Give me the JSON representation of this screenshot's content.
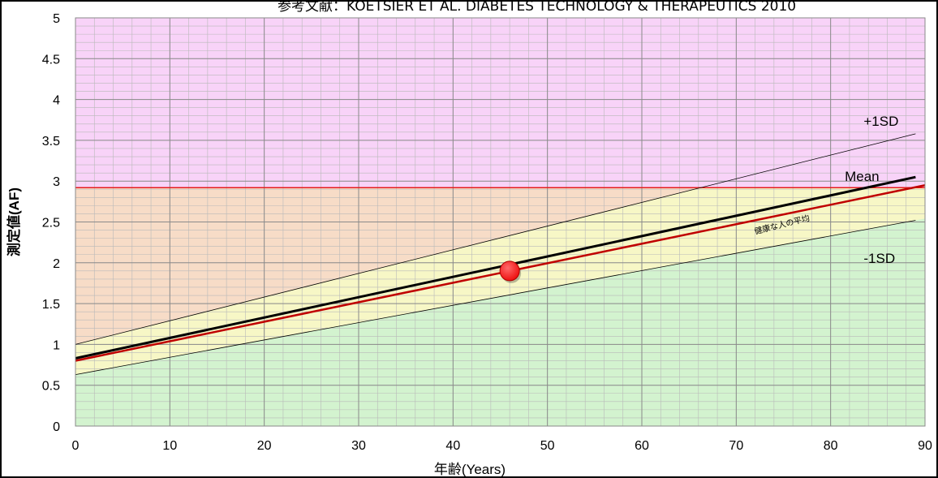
{
  "source_note": "参考文献：KOETSIER ET AL. DIABETES TECHNOLOGY & THERAPEUTICS 2010",
  "chart_data": {
    "type": "line",
    "title": "",
    "xlabel": "年齢(Years)",
    "ylabel": "測定値(AF)",
    "xlim": [
      0,
      90
    ],
    "ylim": [
      0,
      5
    ],
    "x_ticks": [
      0,
      10,
      20,
      30,
      40,
      50,
      60,
      70,
      80,
      90
    ],
    "y_ticks": [
      0,
      0.5,
      1,
      1.5,
      2,
      2.5,
      3,
      3.5,
      4,
      4.5,
      5
    ],
    "y_tick_labels": [
      "0",
      "0.5",
      "1",
      "1.5",
      "2",
      "2.5",
      "3",
      "3.5",
      "4",
      "4.5",
      "5"
    ],
    "grid": true,
    "minor_grid": {
      "x_step": 2,
      "y_step": 0.1
    },
    "background_zones": [
      {
        "from": 2.9,
        "to": 5,
        "color": "#f8d3f8"
      },
      {
        "from": 0,
        "to": 2.9,
        "color": "#d3f3cf",
        "upper_bound_line": "+1SD",
        "lower_bound_line": "-1SD",
        "inside_color": "#f7f7c6"
      },
      {
        "from": 0,
        "to": 2.9,
        "color": "#f7dcc7",
        "above_line": "+1SD"
      }
    ],
    "threshold": {
      "y": 2.92,
      "color": "#e31b1b"
    },
    "series": [
      {
        "name": "+1SD",
        "x": [
          0,
          89
        ],
        "y": [
          1.0,
          3.58
        ],
        "color": "#000000",
        "width": 0.8
      },
      {
        "name": "Mean",
        "x": [
          0,
          89
        ],
        "y": [
          0.83,
          3.05
        ],
        "color": "#000000",
        "width": 3
      },
      {
        "name": "健康な人の平均",
        "x": [
          0,
          90
        ],
        "y": [
          0.8,
          2.95
        ],
        "color": "#c00000",
        "width": 2.5
      },
      {
        "name": "-1SD",
        "x": [
          0,
          89
        ],
        "y": [
          0.63,
          2.52
        ],
        "color": "#000000",
        "width": 0.8
      }
    ],
    "marker": {
      "x": 46,
      "y": 1.9,
      "color": "#ee1111"
    },
    "annotations": [
      {
        "text": "+1SD",
        "x": 83.5,
        "y": 3.68
      },
      {
        "text": "Mean",
        "x": 81.5,
        "y": 3.0
      },
      {
        "text": "健康な人の平均",
        "x": 72,
        "y": 2.35,
        "rotate": -14
      },
      {
        "text": "-1SD",
        "x": 83.5,
        "y": 2.0
      }
    ]
  }
}
